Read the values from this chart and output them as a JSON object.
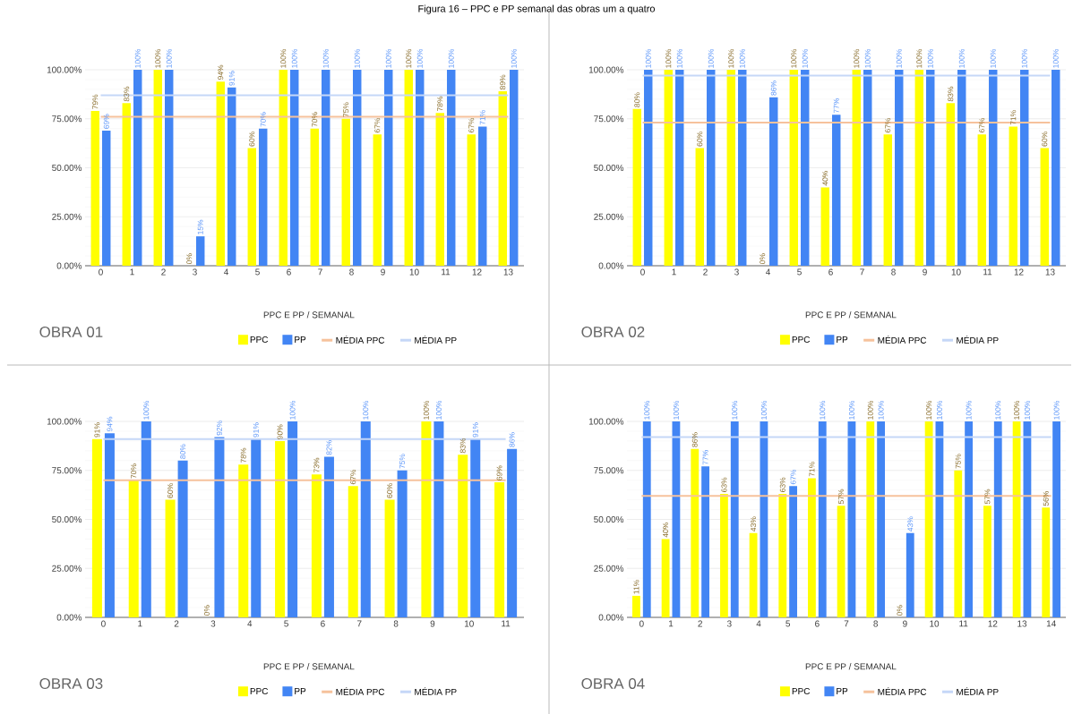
{
  "chart_data": [
    {
      "type": "bar",
      "title": "OBRA 01",
      "xlabel": "PPC E  PP / SEMANAL",
      "annotations": [
        "Figura 16 – PPC e PP semanal das obras um a quatro"
      ],
      "categories": [
        "0",
        "1",
        "2",
        "3",
        "4",
        "5",
        "6",
        "7",
        "8",
        "9",
        "10",
        "11",
        "12",
        "13"
      ],
      "series": [
        {
          "name": "PPC",
          "color": "#ffff00",
          "values": [
            79,
            83,
            100,
            0,
            94,
            60,
            100,
            70,
            75,
            67,
            100,
            78,
            67,
            89
          ],
          "value_labels": [
            "79%",
            "83%",
            "100%",
            "0%",
            "94%",
            "60%",
            "100%",
            "70%",
            "75%",
            "67%",
            "100%",
            "78%",
            "67%",
            "89%"
          ]
        },
        {
          "name": "PP",
          "color": "#4285f4",
          "values": [
            69,
            100,
            100,
            15,
            91,
            70,
            100,
            100,
            100,
            100,
            100,
            100,
            71,
            100
          ],
          "value_labels": [
            "69%",
            "100%",
            "100%",
            "15%",
            "91%",
            "70%",
            "100%",
            "100%",
            "100%",
            "100%",
            "100%",
            "100%",
            "71%",
            "100%"
          ]
        },
        {
          "name": "MÉDIA PPC",
          "type": "line",
          "color": "#f6c29c",
          "values": [
            76,
            76,
            76,
            76,
            76,
            76,
            76,
            76,
            76,
            76,
            76,
            76,
            76,
            76
          ]
        },
        {
          "name": "MÉDIA PP",
          "type": "line",
          "color": "#c5d7f7",
          "values": [
            87,
            87,
            87,
            87,
            87,
            87,
            87,
            87,
            87,
            87,
            87,
            87,
            87,
            87
          ]
        }
      ],
      "ylim": [
        0,
        100
      ],
      "yticks": [
        {
          "value": 0,
          "label": "0.00%"
        },
        {
          "value": 25,
          "label": "25.00%"
        },
        {
          "value": 50,
          "label": "50.00%"
        },
        {
          "value": 75,
          "label": "75.00%"
        },
        {
          "value": 100,
          "label": "100.00%"
        }
      ],
      "grid": "y",
      "legend": "bottom"
    },
    {
      "type": "bar",
      "title": "OBRA 02",
      "xlabel": "PPC E  PP / SEMANAL",
      "categories": [
        "0",
        "1",
        "2",
        "3",
        "4",
        "5",
        "6",
        "7",
        "8",
        "9",
        "10",
        "11",
        "12",
        "13"
      ],
      "series": [
        {
          "name": "PPC",
          "color": "#ffff00",
          "values": [
            80,
            100,
            60,
            100,
            0,
            100,
            40,
            100,
            67,
            100,
            83,
            67,
            71,
            60
          ],
          "value_labels": [
            "80%",
            "100%",
            "60%",
            "100%",
            "0%",
            "100%",
            "40%",
            "100%",
            "67%",
            "100%",
            "83%",
            "67%",
            "71%",
            "60%"
          ]
        },
        {
          "name": "PP",
          "color": "#4285f4",
          "values": [
            100,
            100,
            100,
            100,
            86,
            100,
            77,
            100,
            100,
            100,
            100,
            100,
            100,
            100
          ],
          "value_labels": [
            "100%",
            "100%",
            "100%",
            "100%",
            "86%",
            "100%",
            "77%",
            "100%",
            "100%",
            "100%",
            "100%",
            "100%",
            "100%",
            "100%"
          ]
        },
        {
          "name": "MÉDIA PPC",
          "type": "line",
          "color": "#f6c29c",
          "values": [
            73,
            73,
            73,
            73,
            73,
            73,
            73,
            73,
            73,
            73,
            73,
            73,
            73,
            73
          ]
        },
        {
          "name": "MÉDIA PP",
          "type": "line",
          "color": "#c5d7f7",
          "values": [
            97,
            97,
            97,
            97,
            97,
            97,
            97,
            97,
            97,
            97,
            97,
            97,
            97,
            97
          ]
        }
      ],
      "ylim": [
        0,
        100
      ],
      "yticks": [
        {
          "value": 0,
          "label": "0.00%"
        },
        {
          "value": 25,
          "label": "25.00%"
        },
        {
          "value": 50,
          "label": "50.00%"
        },
        {
          "value": 75,
          "label": "75.00%"
        },
        {
          "value": 100,
          "label": "100.00%"
        }
      ],
      "grid": "y",
      "legend": "bottom"
    },
    {
      "type": "bar",
      "title": "OBRA 03",
      "xlabel": "PPC E  PP / SEMANAL",
      "categories": [
        "0",
        "1",
        "2",
        "3",
        "4",
        "5",
        "6",
        "7",
        "8",
        "9",
        "10",
        "11"
      ],
      "series": [
        {
          "name": "PPC",
          "color": "#ffff00",
          "values": [
            91,
            70,
            60,
            0,
            78,
            90,
            73,
            67,
            60,
            100,
            83,
            69
          ],
          "value_labels": [
            "91%",
            "70%",
            "60%",
            "0%",
            "78%",
            "90%",
            "73%",
            "67%",
            "60%",
            "100%",
            "83%",
            "69%"
          ]
        },
        {
          "name": "PP",
          "color": "#4285f4",
          "values": [
            94,
            100,
            80,
            92,
            91,
            100,
            82,
            100,
            75,
            100,
            91,
            86
          ],
          "value_labels": [
            "94%",
            "100%",
            "80%",
            "92%",
            "91%",
            "100%",
            "82%",
            "100%",
            "75%",
            "100%",
            "91%",
            "86%"
          ]
        },
        {
          "name": "MÉDIA PPC",
          "type": "line",
          "color": "#f6c29c",
          "values": [
            70,
            70,
            70,
            70,
            70,
            70,
            70,
            70,
            70,
            70,
            70,
            70
          ]
        },
        {
          "name": "MÉDIA PP",
          "type": "line",
          "color": "#c5d7f7",
          "values": [
            91,
            91,
            91,
            91,
            91,
            91,
            91,
            91,
            91,
            91,
            91,
            91
          ]
        }
      ],
      "ylim": [
        0,
        100
      ],
      "yticks": [
        {
          "value": 0,
          "label": "0.00%"
        },
        {
          "value": 25,
          "label": "25.00%"
        },
        {
          "value": 50,
          "label": "50.00%"
        },
        {
          "value": 75,
          "label": "75.00%"
        },
        {
          "value": 100,
          "label": "100.00%"
        }
      ],
      "grid": "y",
      "legend": "bottom"
    },
    {
      "type": "bar",
      "title": "OBRA 04",
      "xlabel": "PPC E  PP / SEMANAL",
      "categories": [
        "0",
        "1",
        "2",
        "3",
        "4",
        "5",
        "6",
        "7",
        "8",
        "9",
        "10",
        "11",
        "12",
        "13",
        "14"
      ],
      "series": [
        {
          "name": "PPC",
          "color": "#ffff00",
          "values": [
            11,
            40,
            86,
            63,
            43,
            63,
            71,
            57,
            100,
            0,
            100,
            75,
            57,
            100,
            56
          ],
          "value_labels": [
            "11%",
            "40%",
            "86%",
            "63%",
            "43%",
            "63%",
            "71%",
            "57%",
            "100%",
            "0%",
            "100%",
            "75%",
            "57%",
            "100%",
            "56%"
          ]
        },
        {
          "name": "PP",
          "color": "#4285f4",
          "values": [
            100,
            100,
            77,
            100,
            100,
            67,
            100,
            100,
            100,
            43,
            100,
            100,
            100,
            100,
            100
          ],
          "value_labels": [
            "100%",
            "100%",
            "77%",
            "100%",
            "100%",
            "67%",
            "100%",
            "100%",
            "100%",
            "43%",
            "100%",
            "100%",
            "100%",
            "100%",
            "100%"
          ]
        },
        {
          "name": "MÉDIA PPC",
          "type": "line",
          "color": "#f6c29c",
          "values": [
            62,
            62,
            62,
            62,
            62,
            62,
            62,
            62,
            62,
            62,
            62,
            62,
            62,
            62,
            62
          ]
        },
        {
          "name": "MÉDIA PP",
          "type": "line",
          "color": "#c5d7f7",
          "values": [
            92,
            92,
            92,
            92,
            92,
            92,
            92,
            92,
            92,
            92,
            92,
            92,
            92,
            92,
            92
          ]
        }
      ],
      "ylim": [
        0,
        100
      ],
      "yticks": [
        {
          "value": 0,
          "label": "0.00%"
        },
        {
          "value": 25,
          "label": "25.00%"
        },
        {
          "value": 50,
          "label": "50.00%"
        },
        {
          "value": 75,
          "label": "75.00%"
        },
        {
          "value": 100,
          "label": "100.00%"
        }
      ],
      "grid": "y",
      "legend": "bottom"
    }
  ]
}
